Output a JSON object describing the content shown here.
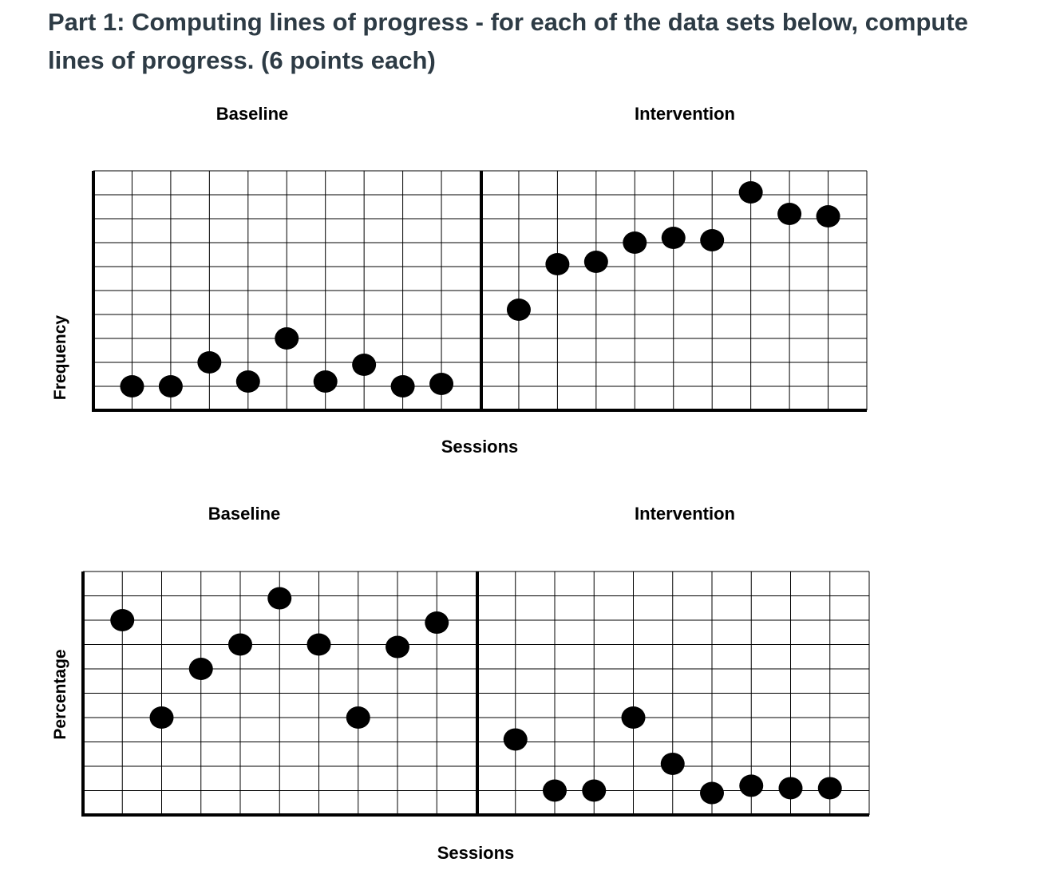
{
  "prompt": "Part 1: Computing lines of progress - for each of the data sets below, compute lines of progress. (6 points each)",
  "colors": {
    "text": "#2d3b45",
    "grid": "#000000",
    "point": "#000000"
  },
  "chart_data": [
    {
      "type": "scatter",
      "title": "",
      "xlabel": "Sessions",
      "ylabel": "Frequency",
      "phases": [
        "Baseline",
        "Intervention"
      ],
      "grid": true,
      "ylim": [
        0,
        10
      ],
      "series": [
        {
          "phase": "Baseline",
          "x": [
            1,
            2,
            3,
            4,
            5,
            6,
            7,
            8,
            9
          ],
          "y": [
            1,
            1,
            2,
            1.2,
            3,
            1.2,
            1.9,
            1,
            1.1
          ]
        },
        {
          "phase": "Intervention",
          "x": [
            11,
            12,
            13,
            14,
            15,
            16,
            17,
            18,
            19
          ],
          "y": [
            4.2,
            6.1,
            6.2,
            7,
            7.2,
            7.1,
            9.1,
            8.2,
            8.1
          ]
        }
      ]
    },
    {
      "type": "scatter",
      "title": "",
      "xlabel": "Sessions",
      "ylabel": "Percentage",
      "phases": [
        "Baseline",
        "Intervention"
      ],
      "grid": true,
      "ylim": [
        0,
        10
      ],
      "series": [
        {
          "phase": "Baseline",
          "x": [
            1,
            2,
            3,
            4,
            5,
            6,
            7,
            8,
            9
          ],
          "y": [
            8,
            4,
            6,
            7,
            8.9,
            7,
            4,
            6.9,
            7.9
          ]
        },
        {
          "phase": "Intervention",
          "x": [
            11,
            12,
            13,
            14,
            15,
            16,
            17,
            18,
            19
          ],
          "y": [
            3.1,
            1,
            1,
            4,
            2.1,
            0.9,
            1.2,
            1.1,
            1.1
          ]
        }
      ]
    }
  ]
}
